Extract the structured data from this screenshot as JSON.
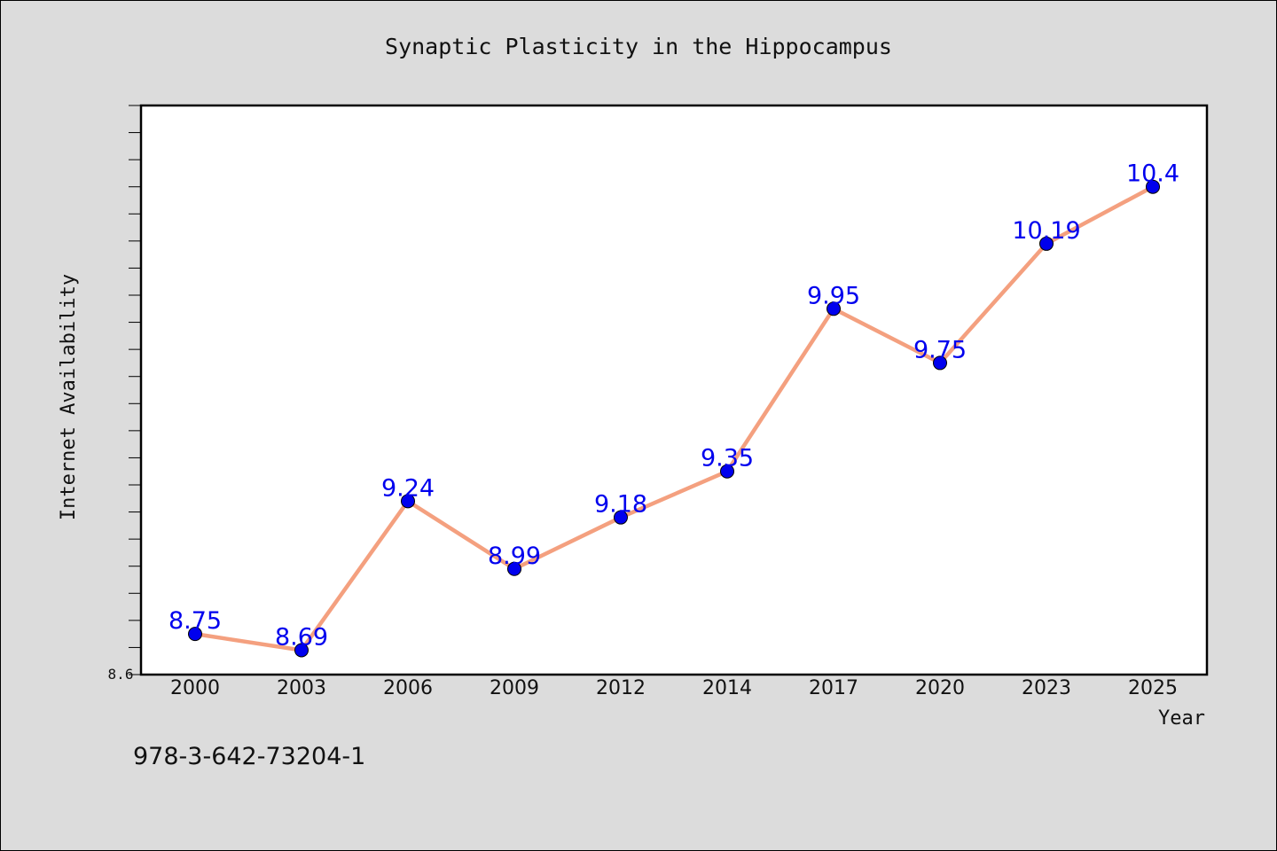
{
  "chart_data": {
    "type": "line",
    "title": "Synaptic Plasticity in the Hippocampus",
    "xlabel": "Year",
    "ylabel": "Internet Availability",
    "categories": [
      "2000",
      "2003",
      "2006",
      "2009",
      "2012",
      "2014",
      "2017",
      "2020",
      "2023",
      "2025"
    ],
    "series": [
      {
        "values": [
          8.75,
          8.69,
          9.24,
          8.99,
          9.18,
          9.35,
          9.95,
          9.75,
          10.19,
          10.4
        ]
      }
    ],
    "data_labels": [
      "8.75",
      "8.69",
      "9.24",
      "8.99",
      "9.18",
      "9.35",
      "9.95",
      "9.75",
      "10.19",
      "10.4"
    ],
    "ylim": [
      8.6,
      10.7
    ],
    "y_tick_label": "8.6",
    "grid": false,
    "line_color": "#f4a07f",
    "marker_color": "#0000ee",
    "label_color": "#0000ee"
  },
  "footer": {
    "isbn": "978-3-642-73204-1"
  }
}
